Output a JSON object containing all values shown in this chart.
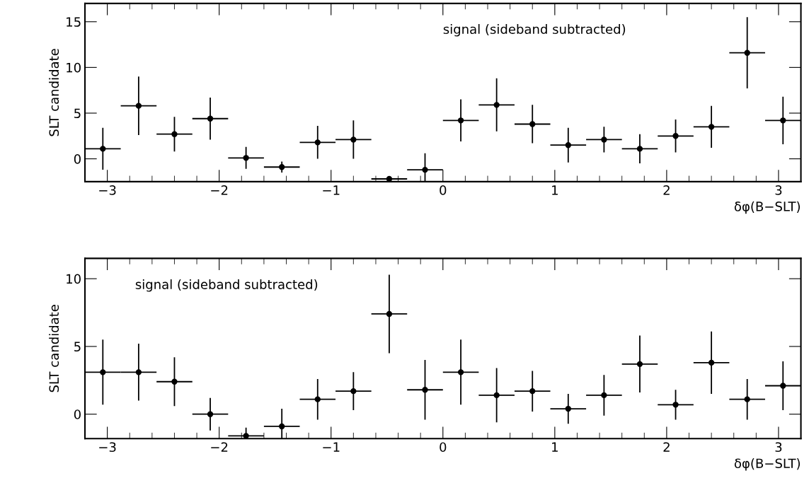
{
  "chart_data": [
    {
      "type": "scatter",
      "annotations": [
        "signal (sideband subtracted)"
      ],
      "xlabel": "δφ(B−SLT)",
      "ylabel": "SLT candidate",
      "marker": "circle",
      "grid": false,
      "x": [
        -3.04,
        -2.72,
        -2.4,
        -2.08,
        -1.76,
        -1.44,
        -1.12,
        -0.8,
        -0.48,
        -0.16,
        0.16,
        0.48,
        0.8,
        1.12,
        1.44,
        1.76,
        2.08,
        2.4,
        2.72,
        3.04
      ],
      "series": [
        {
          "color": "#000000",
          "values": [
            1.1,
            5.8,
            2.7,
            4.4,
            0.1,
            -0.9,
            1.8,
            2.1,
            -2.2,
            -1.2,
            4.2,
            5.9,
            3.8,
            1.5,
            2.1,
            1.1,
            2.5,
            3.5,
            11.6,
            4.2
          ],
          "errors": [
            2.3,
            3.2,
            1.9,
            2.3,
            1.2,
            0.6,
            1.8,
            2.1,
            null,
            1.8,
            2.3,
            2.9,
            2.1,
            1.9,
            1.4,
            1.6,
            1.8,
            2.3,
            3.9,
            2.6
          ],
          "xerrors": [
            0.16,
            0.16,
            0.16,
            0.16,
            0.16,
            0.16,
            0.16,
            0.16,
            0.16,
            0.16,
            0.16,
            0.16,
            0.16,
            0.16,
            0.16,
            0.16,
            0.16,
            0.16,
            0.16,
            0.16
          ]
        }
      ],
      "xlim": [
        -3.2,
        3.2
      ],
      "ylim": [
        -2.5,
        17
      ],
      "xticks": [
        {
          "value": -3,
          "label": "−3"
        },
        {
          "value": -2,
          "label": "−2"
        },
        {
          "value": -1,
          "label": "−1"
        },
        0,
        1,
        2,
        3,
        {
          "value": -2.8,
          "label": null
        },
        {
          "value": -2.6,
          "label": null
        },
        {
          "value": -2.4,
          "label": null
        },
        {
          "value": -2.2,
          "label": null
        },
        {
          "value": -1.8,
          "label": null
        },
        {
          "value": -1.6,
          "label": null
        },
        {
          "value": -1.4,
          "label": null
        },
        {
          "value": -1.2,
          "label": null
        },
        {
          "value": -0.8,
          "label": null
        },
        {
          "value": -0.6,
          "label": null
        },
        {
          "value": -0.4,
          "label": null
        },
        {
          "value": -0.2,
          "label": null
        },
        {
          "value": 0.2,
          "label": null
        },
        {
          "value": 0.4,
          "label": null
        },
        {
          "value": 0.6,
          "label": null
        },
        {
          "value": 0.8,
          "label": null
        },
        {
          "value": 1.2,
          "label": null
        },
        {
          "value": 1.4,
          "label": null
        },
        {
          "value": 1.6,
          "label": null
        },
        {
          "value": 1.8,
          "label": null
        },
        {
          "value": 2.2,
          "label": null
        },
        {
          "value": 2.4,
          "label": null
        },
        {
          "value": 2.6,
          "label": null
        },
        {
          "value": 2.8,
          "label": null
        }
      ],
      "yticks": [
        0,
        5,
        10,
        15
      ]
    },
    {
      "type": "scatter",
      "annotations": [
        "signal (sideband subtracted)"
      ],
      "xlabel": "δφ(B−SLT)",
      "ylabel": "SLT candidate",
      "marker": "circle",
      "grid": false,
      "x": [
        -3.04,
        -2.72,
        -2.4,
        -2.08,
        -1.76,
        -1.44,
        -1.12,
        -0.8,
        -0.48,
        -0.16,
        0.16,
        0.48,
        0.8,
        1.12,
        1.44,
        1.76,
        2.08,
        2.4,
        2.72,
        3.04
      ],
      "series": [
        {
          "color": "#000000",
          "values": [
            3.1,
            3.1,
            2.4,
            0.0,
            -1.6,
            -0.9,
            1.1,
            1.7,
            7.4,
            1.8,
            3.1,
            1.4,
            1.7,
            0.4,
            1.4,
            3.7,
            0.7,
            3.8,
            1.1,
            2.1
          ],
          "errors": [
            2.4,
            2.1,
            1.8,
            1.2,
            0.6,
            1.3,
            1.5,
            1.4,
            2.9,
            2.2,
            2.4,
            2.0,
            1.5,
            1.1,
            1.5,
            2.1,
            1.1,
            2.3,
            1.5,
            1.8
          ],
          "xerrors": [
            0.16,
            0.16,
            0.16,
            0.16,
            0.16,
            0.16,
            0.16,
            0.16,
            0.16,
            0.16,
            0.16,
            0.16,
            0.16,
            0.16,
            0.16,
            0.16,
            0.16,
            0.16,
            0.16,
            0.16
          ]
        }
      ],
      "xlim": [
        -3.2,
        3.2
      ],
      "ylim": [
        -1.8,
        11.5
      ],
      "xticks": [
        {
          "value": -3,
          "label": "−3"
        },
        {
          "value": -2,
          "label": "−2"
        },
        {
          "value": -1,
          "label": "−1"
        },
        0,
        1,
        2,
        3,
        {
          "value": -2.8,
          "label": null
        },
        {
          "value": -2.6,
          "label": null
        },
        {
          "value": -2.4,
          "label": null
        },
        {
          "value": -2.2,
          "label": null
        },
        {
          "value": -1.8,
          "label": null
        },
        {
          "value": -1.6,
          "label": null
        },
        {
          "value": -1.4,
          "label": null
        },
        {
          "value": -1.2,
          "label": null
        },
        {
          "value": -0.8,
          "label": null
        },
        {
          "value": -0.6,
          "label": null
        },
        {
          "value": -0.4,
          "label": null
        },
        {
          "value": -0.2,
          "label": null
        },
        {
          "value": 0.2,
          "label": null
        },
        {
          "value": 0.4,
          "label": null
        },
        {
          "value": 0.6,
          "label": null
        },
        {
          "value": 0.8,
          "label": null
        },
        {
          "value": 1.2,
          "label": null
        },
        {
          "value": 1.4,
          "label": null
        },
        {
          "value": 1.6,
          "label": null
        },
        {
          "value": 1.8,
          "label": null
        },
        {
          "value": 2.2,
          "label": null
        },
        {
          "value": 2.4,
          "label": null
        },
        {
          "value": 2.6,
          "label": null
        },
        {
          "value": 2.8,
          "label": null
        }
      ],
      "yticks": [
        0,
        5,
        10
      ]
    }
  ]
}
